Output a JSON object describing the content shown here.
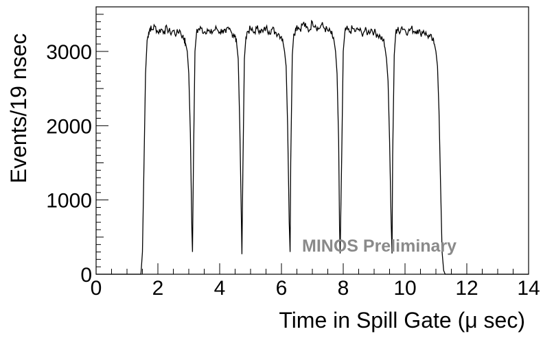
{
  "chart_data": {
    "type": "line",
    "xlabel": "Time in Spill Gate (μ sec)",
    "ylabel": "Events/19 nsec",
    "annotation": "MINOS Preliminary",
    "xlim": [
      0,
      14
    ],
    "ylim": [
      0,
      3600
    ],
    "xticks": [
      0,
      2,
      4,
      6,
      8,
      10,
      12,
      14
    ],
    "yticks": [
      0,
      1000,
      2000,
      3000
    ],
    "ytick_labels": [
      "0",
      "1000",
      "2000",
      "3000"
    ],
    "xtick_labels": [
      "0",
      "2",
      "4",
      "6",
      "8",
      "10",
      "12",
      "14"
    ],
    "grid": false,
    "line_color": "#000000",
    "annotation_color": "#8a8a8a",
    "series": [
      {
        "x": [
          0.0,
          1.45,
          1.5,
          1.55,
          1.6,
          1.65,
          1.7,
          1.75,
          1.8,
          1.9,
          2.0,
          2.1,
          2.2,
          2.3,
          2.4,
          2.5,
          2.6,
          2.7,
          2.8,
          2.85,
          2.9,
          2.95,
          3.0,
          3.05,
          3.1,
          3.12,
          3.15,
          3.2,
          3.25,
          3.3,
          3.4,
          3.5,
          3.6,
          3.7,
          3.8,
          3.9,
          4.0,
          4.1,
          4.2,
          4.3,
          4.4,
          4.45,
          4.5,
          4.55,
          4.6,
          4.65,
          4.7,
          4.72,
          4.75,
          4.8,
          4.85,
          4.9,
          5.0,
          5.1,
          5.2,
          5.3,
          5.4,
          5.5,
          5.6,
          5.7,
          5.8,
          5.9,
          6.0,
          6.05,
          6.1,
          6.15,
          6.2,
          6.25,
          6.28,
          6.3,
          6.35,
          6.4,
          6.45,
          6.5,
          6.6,
          6.7,
          6.8,
          6.9,
          7.0,
          7.1,
          7.2,
          7.3,
          7.4,
          7.5,
          7.6,
          7.65,
          7.7,
          7.75,
          7.8,
          7.85,
          7.88,
          7.9,
          7.95,
          8.0,
          8.05,
          8.1,
          8.2,
          8.3,
          8.4,
          8.5,
          8.6,
          8.7,
          8.8,
          8.9,
          9.0,
          9.1,
          9.2,
          9.3,
          9.35,
          9.4,
          9.45,
          9.5,
          9.55,
          9.58,
          9.6,
          9.65,
          9.7,
          9.75,
          9.8,
          9.9,
          10.0,
          10.1,
          10.2,
          10.3,
          10.4,
          10.5,
          10.6,
          10.7,
          10.8,
          10.9,
          10.95,
          11.0,
          11.05,
          11.1,
          11.15,
          11.2,
          11.25,
          11.3,
          14.0
        ],
        "y": [
          0,
          0,
          300,
          1500,
          2700,
          3150,
          3250,
          3320,
          3290,
          3340,
          3260,
          3300,
          3270,
          3310,
          3250,
          3280,
          3230,
          3290,
          3200,
          3170,
          3100,
          3000,
          2700,
          1900,
          600,
          300,
          1500,
          3000,
          3250,
          3290,
          3310,
          3260,
          3300,
          3240,
          3280,
          3310,
          3260,
          3290,
          3250,
          3300,
          3240,
          3230,
          3200,
          3100,
          2900,
          2000,
          800,
          270,
          1400,
          2900,
          3200,
          3270,
          3300,
          3250,
          3310,
          3290,
          3260,
          3320,
          3270,
          3300,
          3260,
          3240,
          3200,
          3120,
          3000,
          2800,
          2000,
          700,
          300,
          1500,
          2950,
          3240,
          3290,
          3350,
          3300,
          3380,
          3320,
          3280,
          3400,
          3350,
          3300,
          3360,
          3310,
          3280,
          3250,
          3200,
          3150,
          3000,
          2700,
          1800,
          650,
          280,
          1600,
          3000,
          3250,
          3300,
          3260,
          3310,
          3270,
          3300,
          3240,
          3280,
          3250,
          3300,
          3260,
          3230,
          3200,
          3150,
          3050,
          2900,
          2600,
          1800,
          700,
          280,
          1600,
          2950,
          3250,
          3300,
          3270,
          3330,
          3290,
          3260,
          3310,
          3270,
          3290,
          3240,
          3280,
          3220,
          3200,
          3150,
          3100,
          3000,
          2800,
          2200,
          1200,
          300,
          50,
          0,
          0
        ]
      }
    ]
  }
}
